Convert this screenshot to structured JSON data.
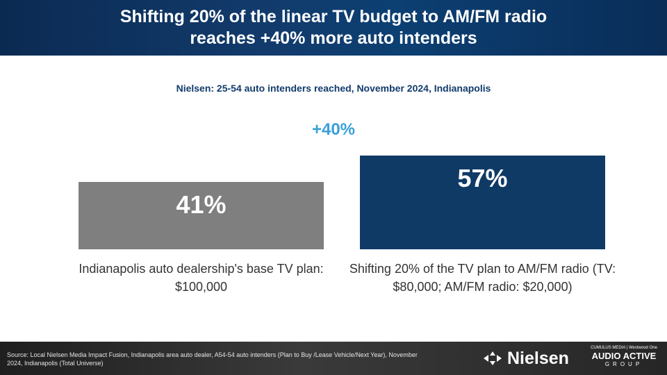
{
  "header": {
    "title": "Shifting 20% of the linear TV budget to AM/FM radio\nreaches +40% more auto intenders"
  },
  "chart_data": {
    "type": "bar",
    "subtitle": "Nielsen: 25-54 auto intenders reached, November 2024, Indianapolis",
    "categories": [
      "Indianapolis auto dealership's base TV plan: $100,000",
      "Shifting 20% of the TV plan to AM/FM radio (TV: $80,000; AM/FM radio: $20,000)"
    ],
    "values": [
      41,
      57
    ],
    "value_labels": [
      "41%",
      "57%"
    ],
    "colors": [
      "#7f7f7f",
      "#0f3a66"
    ],
    "annotation": "+40%",
    "annotation_color": "#3aa0d8",
    "grid": false,
    "legend": "none"
  },
  "footer": {
    "source": "Source: Local Nielsen Media Impact Fusion, Indianapolis area auto dealer, A54-54 auto intenders (Plan to Buy /Lease Vehicle/Next Year), November 2024, Indianapolis (Total Universe)",
    "nielsen_logo_text": "Nielsen",
    "nielsen_logo_icon": "nielsen-arrows-icon",
    "aag_top": "CUMULUS MEDIA | Westwood One",
    "aag_main": "AUDIO ACTIVE",
    "aag_sub": "GROUP"
  }
}
